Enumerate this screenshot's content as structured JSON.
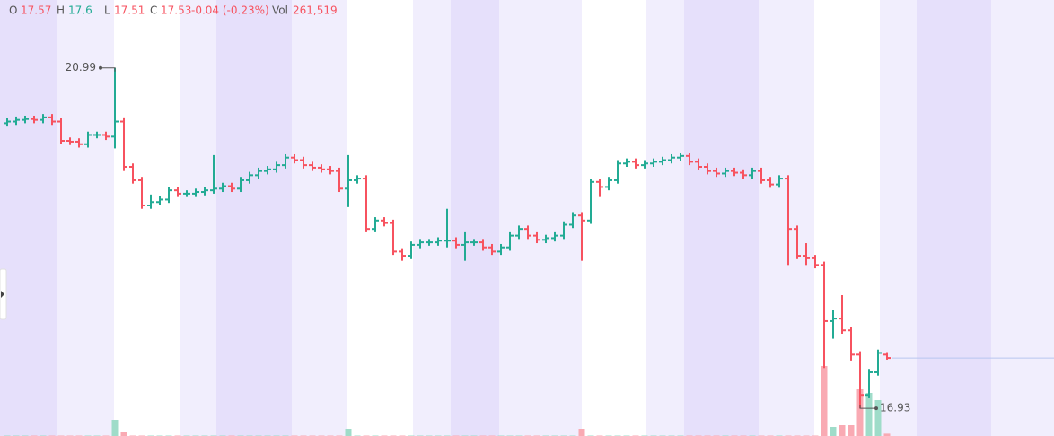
{
  "chart_data": {
    "type": "ohlc",
    "open": [
      20.33,
      20.35,
      20.37,
      20.38,
      20.37,
      20.4,
      20.35,
      20.12,
      20.11,
      20.08,
      20.19,
      20.19,
      20.17,
      20.35,
      19.81,
      19.65,
      19.35,
      19.39,
      19.42,
      19.53,
      19.49,
      19.49,
      19.51,
      19.53,
      19.55,
      19.58,
      19.55,
      19.65,
      19.71,
      19.76,
      19.78,
      19.83,
      19.92,
      19.89,
      19.83,
      19.8,
      19.78,
      19.76,
      19.55,
      19.65,
      19.67,
      19.07,
      19.17,
      19.14,
      18.8,
      18.75,
      18.88,
      18.91,
      18.91,
      18.93,
      18.93,
      18.88,
      18.91,
      18.91,
      18.85,
      18.8,
      18.85,
      18.99,
      19.07,
      18.99,
      18.94,
      18.96,
      18.99,
      19.12,
      19.23,
      19.17,
      19.63,
      19.57,
      19.65,
      19.85,
      19.87,
      19.83,
      19.85,
      19.87,
      19.89,
      19.92,
      19.94,
      19.87,
      19.81,
      19.76,
      19.73,
      19.76,
      19.74,
      19.71,
      19.76,
      19.65,
      19.6,
      19.67,
      19.07,
      18.75,
      18.72,
      18.64,
      17.97,
      18.0,
      17.86,
      17.57,
      17.09,
      17.36,
      17.57
    ],
    "high": [
      20.39,
      20.41,
      20.42,
      20.42,
      20.44,
      20.44,
      20.39,
      20.16,
      20.15,
      20.23,
      20.23,
      20.23,
      20.99,
      20.4,
      19.85,
      19.69,
      19.48,
      19.46,
      19.57,
      19.57,
      19.53,
      19.55,
      19.57,
      19.95,
      19.62,
      19.62,
      19.69,
      19.75,
      19.8,
      19.82,
      19.87,
      19.96,
      19.96,
      19.93,
      19.87,
      19.84,
      19.82,
      19.8,
      19.95,
      19.71,
      19.71,
      19.21,
      19.21,
      19.18,
      18.84,
      18.92,
      18.95,
      18.95,
      18.97,
      19.31,
      18.97,
      19.03,
      18.95,
      18.95,
      18.89,
      18.89,
      19.03,
      19.11,
      19.11,
      19.03,
      19.0,
      19.03,
      19.16,
      19.27,
      19.27,
      19.67,
      19.67,
      19.69,
      19.89,
      19.91,
      19.91,
      19.89,
      19.91,
      19.93,
      19.96,
      19.98,
      19.98,
      19.91,
      19.85,
      19.8,
      19.8,
      19.8,
      19.78,
      19.8,
      19.8,
      19.69,
      19.71,
      19.71,
      19.11,
      18.9,
      18.76,
      18.68,
      18.1,
      18.28,
      17.9,
      17.61,
      17.4,
      17.63,
      17.6
    ],
    "low": [
      20.29,
      20.31,
      20.33,
      20.33,
      20.33,
      20.31,
      20.08,
      20.07,
      20.04,
      20.04,
      20.15,
      20.13,
      20.03,
      19.76,
      19.61,
      19.31,
      19.31,
      19.35,
      19.38,
      19.45,
      19.45,
      19.45,
      19.47,
      19.49,
      19.51,
      19.51,
      19.51,
      19.61,
      19.67,
      19.72,
      19.74,
      19.79,
      19.85,
      19.79,
      19.76,
      19.74,
      19.72,
      19.51,
      19.33,
      19.61,
      19.03,
      19.03,
      19.1,
      18.76,
      18.69,
      18.71,
      18.84,
      18.87,
      18.87,
      18.85,
      18.84,
      18.69,
      18.87,
      18.81,
      18.76,
      18.76,
      18.81,
      18.95,
      18.95,
      18.9,
      18.9,
      18.92,
      18.95,
      19.08,
      18.69,
      19.13,
      19.45,
      19.53,
      19.61,
      19.81,
      19.79,
      19.79,
      19.81,
      19.83,
      19.85,
      19.88,
      19.83,
      19.77,
      19.72,
      19.69,
      19.69,
      19.7,
      19.67,
      19.67,
      19.61,
      19.56,
      19.56,
      18.64,
      18.71,
      18.64,
      18.6,
      17.41,
      17.76,
      17.82,
      17.5,
      16.93,
      17.05,
      17.32,
      17.51
    ],
    "close": [
      20.35,
      20.37,
      20.38,
      20.37,
      20.4,
      20.35,
      20.12,
      20.11,
      20.08,
      20.19,
      20.19,
      20.17,
      20.35,
      19.81,
      19.65,
      19.35,
      19.39,
      19.42,
      19.53,
      19.49,
      19.49,
      19.51,
      19.53,
      19.55,
      19.58,
      19.55,
      19.65,
      19.71,
      19.76,
      19.78,
      19.83,
      19.92,
      19.89,
      19.83,
      19.8,
      19.78,
      19.76,
      19.55,
      19.65,
      19.67,
      19.07,
      19.17,
      19.14,
      18.8,
      18.75,
      18.88,
      18.91,
      18.91,
      18.93,
      18.93,
      18.88,
      18.91,
      18.91,
      18.85,
      18.8,
      18.85,
      18.99,
      19.07,
      18.99,
      18.94,
      18.96,
      18.99,
      19.12,
      19.23,
      19.17,
      19.63,
      19.57,
      19.65,
      19.85,
      19.87,
      19.83,
      19.85,
      19.87,
      19.89,
      19.92,
      19.94,
      19.87,
      19.81,
      19.76,
      19.73,
      19.76,
      19.74,
      19.71,
      19.76,
      19.65,
      19.6,
      19.67,
      19.07,
      18.75,
      18.72,
      18.64,
      17.97,
      18.0,
      17.86,
      17.57,
      17.09,
      17.36,
      17.59,
      17.53
    ],
    "volume": [
      50000,
      50000,
      50000,
      50000,
      50000,
      50000,
      50000,
      50000,
      50000,
      50000,
      50000,
      50000,
      1800000,
      500000,
      50000,
      50000,
      50000,
      50000,
      50000,
      50000,
      50000,
      50000,
      50000,
      50000,
      50000,
      50000,
      50000,
      50000,
      50000,
      50000,
      50000,
      50000,
      50000,
      50000,
      50000,
      50000,
      50000,
      50000,
      800000,
      50000,
      50000,
      50000,
      50000,
      50000,
      50000,
      50000,
      50000,
      50000,
      50000,
      50000,
      50000,
      50000,
      50000,
      50000,
      50000,
      50000,
      50000,
      50000,
      50000,
      50000,
      50000,
      50000,
      50000,
      50000,
      800000,
      50000,
      50000,
      50000,
      50000,
      50000,
      50000,
      50000,
      50000,
      50000,
      50000,
      50000,
      50000,
      50000,
      50000,
      50000,
      50000,
      50000,
      50000,
      50000,
      50000,
      50000,
      50000,
      50000,
      50000,
      50000,
      50000,
      7800000,
      1000000,
      1200000,
      1200000,
      5200000,
      4800000,
      4000000,
      261519
    ],
    "ylim": [
      16.6,
      21.8
    ],
    "volume_lim": [
      0,
      48600000
    ],
    "up_color": "#22ab94",
    "down_color": "#f7525f",
    "up_volume_color": "#9fdcc9",
    "down_volume_color": "#f9aab3",
    "header": {
      "open_label": "O",
      "high_label": "H",
      "low_label": "L",
      "close_label": "C",
      "change": "-0.04 (-0.23%)",
      "volume_label": "Vol",
      "volume_text": "261,519"
    }
  }
}
